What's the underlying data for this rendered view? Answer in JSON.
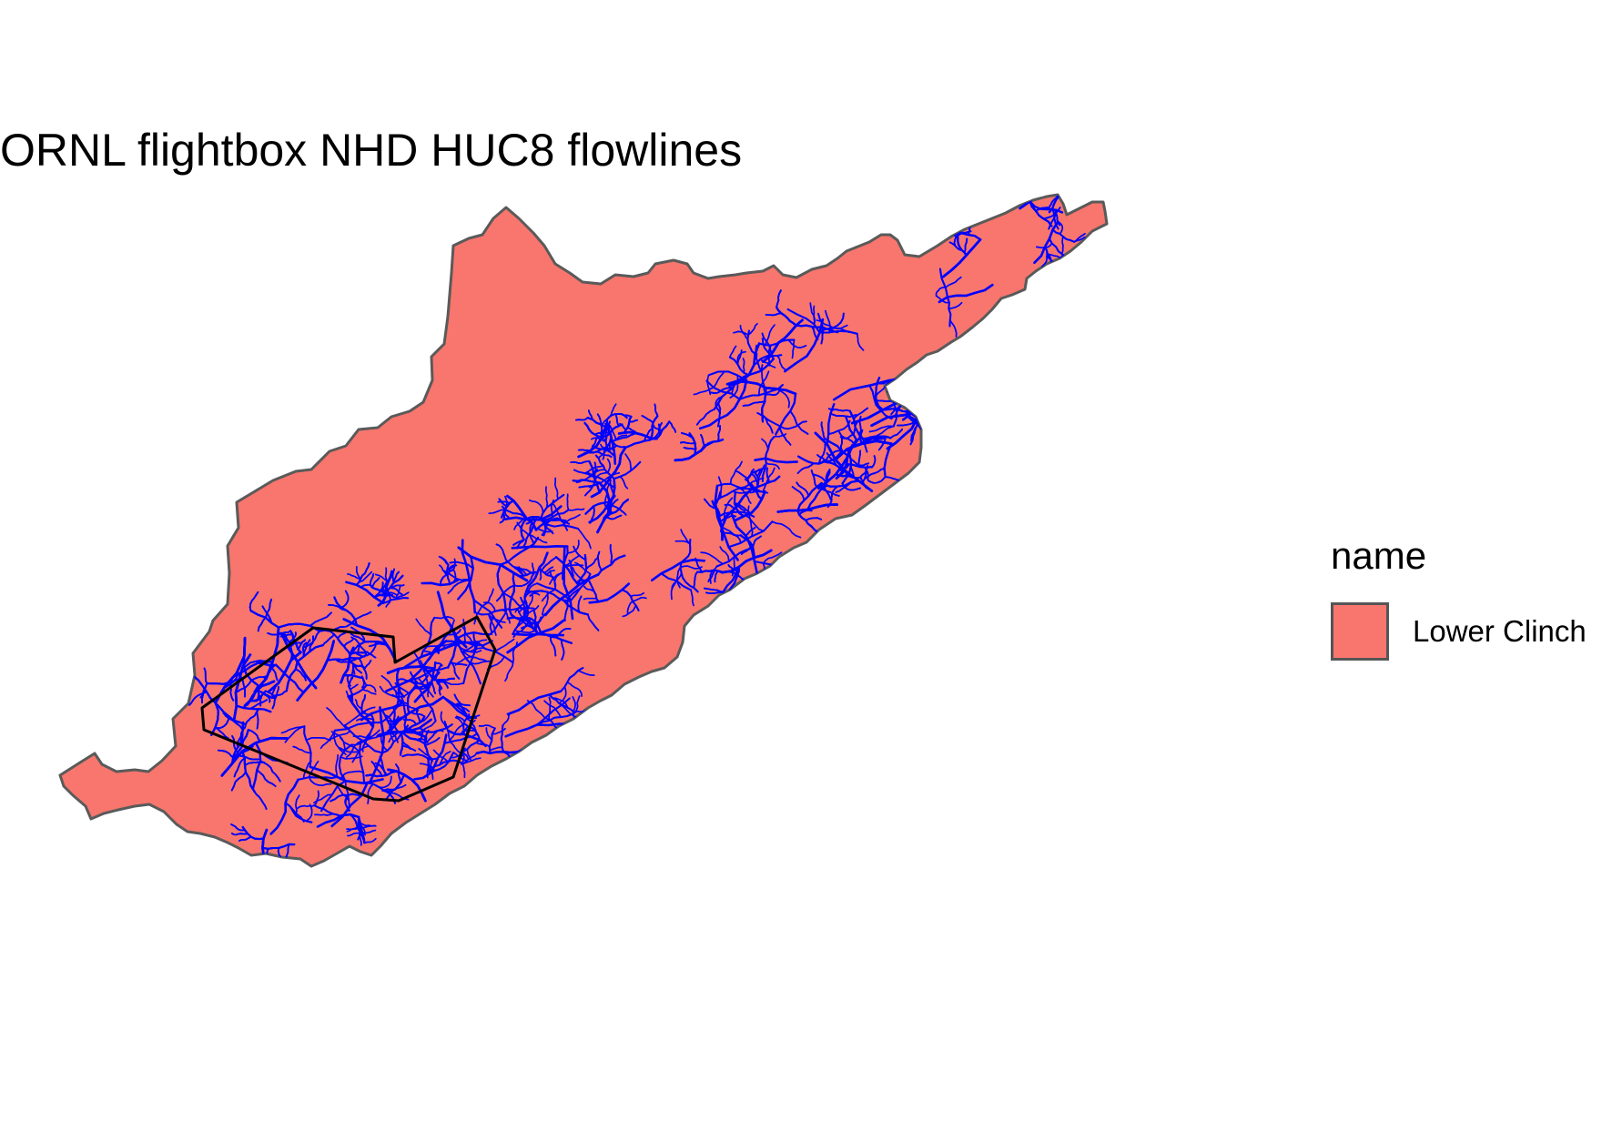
{
  "title": "ORNL flightbox NHD HUC8 flowlines",
  "legend": {
    "title": "name",
    "items": [
      {
        "label": "Lower Clinch",
        "color": "#F8766D"
      }
    ]
  },
  "colors": {
    "watershed_fill": "#F8766D",
    "watershed_outline": "#5a5a5a",
    "flowlines": "#0000FF",
    "flightbox_outline": "#000000"
  },
  "layers": [
    {
      "name": "HUC8 watershed",
      "value": "Lower Clinch"
    },
    {
      "name": "NHD flowlines"
    },
    {
      "name": "ORNL flightbox"
    }
  ]
}
